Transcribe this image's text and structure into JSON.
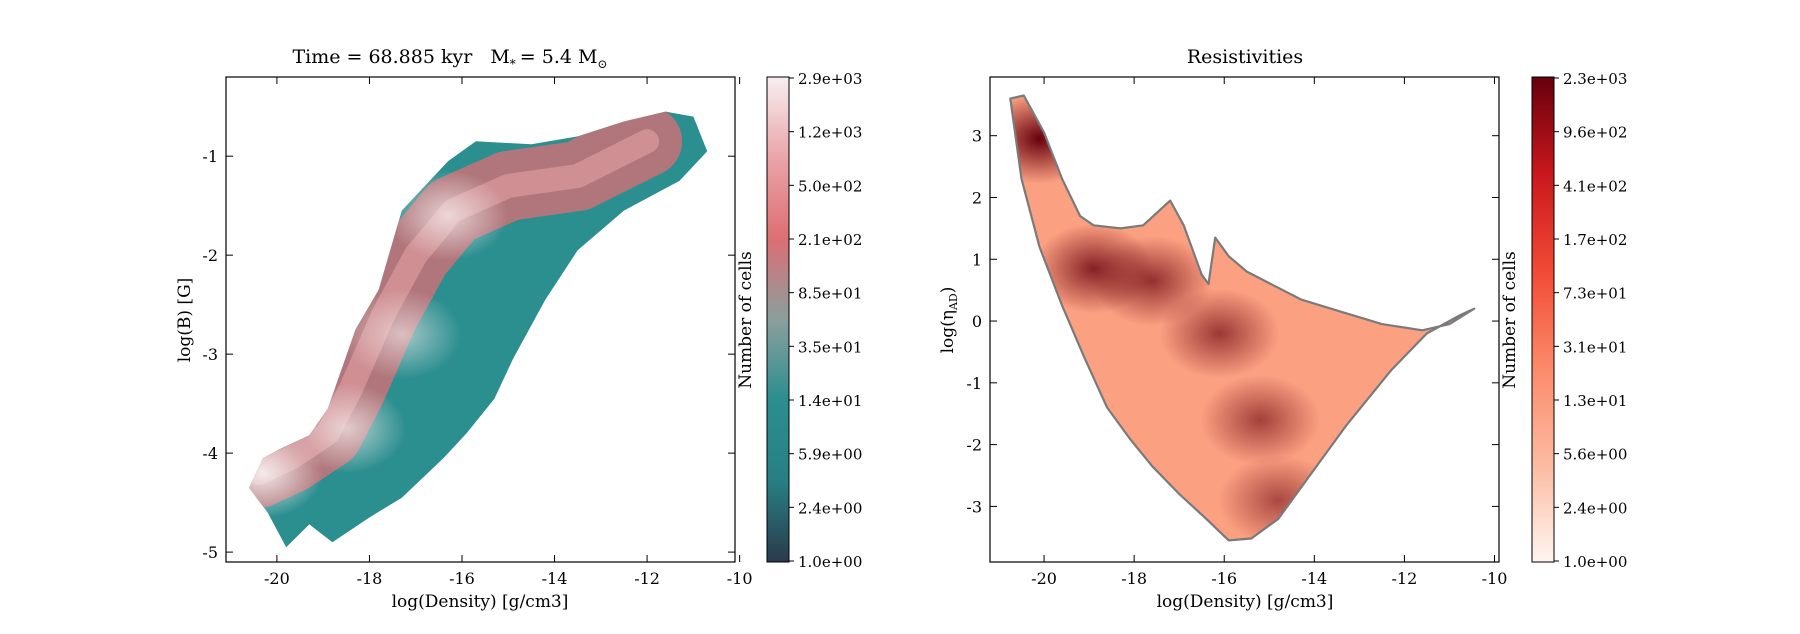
{
  "chart_data": [
    {
      "type": "heatmap",
      "title": "Time = 68.885 kyr    M$_*$ = 5.4 M$_\\odot$",
      "title_parts": {
        "time": "Time = 68.885 kyr",
        "mass_prefix": "M",
        "mass_sub": "*",
        "mass_value": "= 5.4 M",
        "mass_unit_sub": "⊙"
      },
      "xlabel": "log(Density) [g/cm3]",
      "ylabel": "log(B) [G]",
      "xlim": [
        -21.1,
        -10.1
      ],
      "ylim": [
        -5.1,
        -0.2
      ],
      "xticks": [
        -20,
        -18,
        -16,
        -14,
        -12,
        -10
      ],
      "yticks": [
        -5,
        -4,
        -3,
        -2,
        -1
      ],
      "colorbar": {
        "label": "Number of cells",
        "scale": "log",
        "range": [
          1.0,
          3000
        ],
        "ticks": [
          "1.0e+00",
          "2.4e+00",
          "5.9e+00",
          "1.4e+01",
          "3.5e+01",
          "8.5e+01",
          "2.1e+02",
          "5.0e+02",
          "1.2e+03",
          "2.9e+03"
        ],
        "colors": [
          "#2a3a4c",
          "#287f84",
          "#2b8e8f",
          "#8a9f9d",
          "#dd6e74",
          "#eaa4a8",
          "#f7efef"
        ]
      },
      "outline": [
        [
          -20.6,
          -4.35
        ],
        [
          -20.3,
          -4.05
        ],
        [
          -19.9,
          -3.95
        ],
        [
          -19.3,
          -3.82
        ],
        [
          -18.9,
          -3.55
        ],
        [
          -18.3,
          -2.75
        ],
        [
          -17.8,
          -2.35
        ],
        [
          -17.3,
          -1.55
        ],
        [
          -16.3,
          -1.05
        ],
        [
          -15.7,
          -0.85
        ],
        [
          -14.5,
          -0.88
        ],
        [
          -13.5,
          -0.8
        ],
        [
          -12.5,
          -0.65
        ],
        [
          -11.6,
          -0.55
        ],
        [
          -11.0,
          -0.6
        ],
        [
          -10.7,
          -0.95
        ],
        [
          -11.3,
          -1.25
        ],
        [
          -12.5,
          -1.55
        ],
        [
          -13.5,
          -1.95
        ],
        [
          -14.2,
          -2.45
        ],
        [
          -14.9,
          -3.05
        ],
        [
          -15.3,
          -3.45
        ],
        [
          -15.9,
          -3.8
        ],
        [
          -16.4,
          -4.05
        ],
        [
          -17.3,
          -4.45
        ],
        [
          -18.0,
          -4.65
        ],
        [
          -18.8,
          -4.9
        ],
        [
          -19.3,
          -4.72
        ],
        [
          -19.8,
          -4.95
        ],
        [
          -20.2,
          -4.6
        ],
        [
          -20.6,
          -4.35
        ]
      ],
      "inner_ridge": [
        [
          -20.4,
          -4.2
        ],
        [
          -19.7,
          -4.05
        ],
        [
          -18.9,
          -3.8
        ],
        [
          -18.4,
          -3.35
        ],
        [
          -17.7,
          -2.6
        ],
        [
          -17.0,
          -2.0
        ],
        [
          -16.2,
          -1.55
        ],
        [
          -15.0,
          -1.3
        ],
        [
          -13.5,
          -1.2
        ],
        [
          -12.0,
          -0.85
        ]
      ],
      "hotspots": [
        {
          "x": -20.3,
          "y": -4.2,
          "level": 0.95
        },
        {
          "x": -18.5,
          "y": -3.75,
          "level": 0.7
        },
        {
          "x": -16.3,
          "y": -1.6,
          "level": 0.75
        },
        {
          "x": -17.3,
          "y": -2.8,
          "level": 0.6
        }
      ]
    },
    {
      "type": "heatmap",
      "title": "Resistivities",
      "xlabel": "log(Density) [g/cm3]",
      "ylabel": "log(η_AD)",
      "ylabel_parts": {
        "prefix": "log(",
        "symbol": "η",
        "sub": "AD",
        "suffix": ")"
      },
      "xlim": [
        -21.2,
        -9.9
      ],
      "ylim": [
        -3.9,
        3.95
      ],
      "xticks": [
        -20,
        -18,
        -16,
        -14,
        -12,
        -10
      ],
      "yticks": [
        -3,
        -2,
        -1,
        0,
        1,
        2,
        3
      ],
      "colorbar": {
        "label": "Number of cells",
        "scale": "log",
        "range": [
          1.0,
          2300
        ],
        "ticks": [
          "1.0e+00",
          "2.4e+00",
          "5.6e+00",
          "1.3e+01",
          "3.1e+01",
          "7.3e+01",
          "1.7e+02",
          "4.1e+02",
          "9.6e+02",
          "2.3e+03"
        ],
        "colors": [
          "#fff5f0",
          "#fcbba1",
          "#fc8a6a",
          "#f24a35",
          "#c9181d",
          "#67000d"
        ]
      },
      "outline": [
        [
          -20.75,
          3.6
        ],
        [
          -20.45,
          3.65
        ],
        [
          -20.0,
          3.05
        ],
        [
          -19.6,
          2.3
        ],
        [
          -19.2,
          1.7
        ],
        [
          -18.9,
          1.55
        ],
        [
          -18.3,
          1.5
        ],
        [
          -17.8,
          1.55
        ],
        [
          -17.5,
          1.75
        ],
        [
          -17.2,
          1.95
        ],
        [
          -16.9,
          1.55
        ],
        [
          -16.5,
          0.75
        ],
        [
          -16.35,
          0.6
        ],
        [
          -16.2,
          1.35
        ],
        [
          -15.9,
          1.05
        ],
        [
          -15.5,
          0.8
        ],
        [
          -15.1,
          0.65
        ],
        [
          -14.3,
          0.35
        ],
        [
          -13.4,
          0.15
        ],
        [
          -12.5,
          -0.05
        ],
        [
          -11.6,
          -0.15
        ],
        [
          -11.0,
          -0.05
        ],
        [
          -10.45,
          0.2
        ],
        [
          -10.75,
          0.1
        ],
        [
          -11.5,
          -0.2
        ],
        [
          -12.3,
          -0.8
        ],
        [
          -13.3,
          -1.7
        ],
        [
          -14.1,
          -2.5
        ],
        [
          -14.8,
          -3.2
        ],
        [
          -15.4,
          -3.52
        ],
        [
          -15.9,
          -3.55
        ],
        [
          -16.4,
          -3.2
        ],
        [
          -17.0,
          -2.8
        ],
        [
          -17.6,
          -2.35
        ],
        [
          -18.1,
          -1.9
        ],
        [
          -18.6,
          -1.4
        ],
        [
          -19.1,
          -0.6
        ],
        [
          -19.6,
          0.25
        ],
        [
          -20.1,
          1.2
        ],
        [
          -20.5,
          2.3
        ],
        [
          -20.75,
          3.6
        ]
      ],
      "hotspots": [
        {
          "x": -20.1,
          "y": 2.95,
          "level": 1.0
        },
        {
          "x": -18.9,
          "y": 0.85,
          "level": 0.8
        },
        {
          "x": -17.6,
          "y": 0.65,
          "level": 0.7
        },
        {
          "x": -16.1,
          "y": -0.2,
          "level": 0.65
        },
        {
          "x": -15.2,
          "y": -1.6,
          "level": 0.6
        },
        {
          "x": -14.8,
          "y": -2.9,
          "level": 0.55
        }
      ]
    }
  ]
}
